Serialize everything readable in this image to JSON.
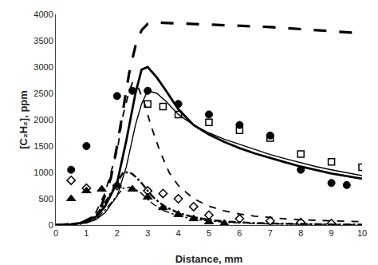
{
  "chart_data": {
    "type": "line",
    "xlabel": "Distance, mm",
    "ylabel": "[C₂H₂], ppm",
    "xlim": [
      0,
      10
    ],
    "ylim": [
      0,
      4000
    ],
    "xticks": [
      0,
      1,
      2,
      3,
      4,
      5,
      6,
      7,
      8,
      9,
      10
    ],
    "yticks": [
      0,
      500,
      1000,
      1500,
      2000,
      2500,
      3000,
      3500,
      4000
    ],
    "grid": false,
    "series": [
      {
        "type": "line",
        "color": "#000000",
        "line_style": "dashed",
        "x": [
          0,
          0.3,
          0.6,
          0.9,
          1.2,
          1.5,
          1.8,
          2.0,
          2.2,
          2.4,
          2.6,
          2.8,
          3.0,
          3.2,
          3.5,
          4.0,
          4.5,
          5.0,
          5.5,
          6.0,
          6.5,
          7.0,
          7.5,
          8.0,
          8.5,
          9.0,
          9.5,
          10.0
        ],
        "values": [
          0,
          5,
          20,
          60,
          150,
          380,
          900,
          1500,
          2200,
          2900,
          3400,
          3700,
          3820,
          3850,
          3840,
          3830,
          3820,
          3810,
          3800,
          3790,
          3780,
          3760,
          3740,
          3720,
          3700,
          3680,
          3660,
          3640
        ]
      },
      {
        "type": "line",
        "color": "#000000",
        "line_style": "solid",
        "x": [
          0,
          0.2,
          0.5,
          0.8,
          1.0,
          1.3,
          1.6,
          2.0,
          2.3,
          2.6,
          2.8,
          3.0,
          3.3,
          3.6,
          4.0,
          4.5,
          5.0,
          5.5,
          6.0,
          6.5,
          7.0,
          7.5,
          8.0,
          8.5,
          9.0,
          9.5,
          10.0
        ],
        "values": [
          0,
          5,
          15,
          40,
          70,
          150,
          350,
          800,
          1600,
          2500,
          2950,
          3000,
          2800,
          2550,
          2200,
          1900,
          1720,
          1580,
          1460,
          1360,
          1270,
          1190,
          1110,
          1040,
          980,
          930,
          880
        ]
      },
      {
        "type": "line",
        "color": "#000000",
        "line_style": "solid",
        "x": [
          0,
          0.2,
          0.5,
          0.8,
          1.0,
          1.3,
          1.6,
          2.0,
          2.3,
          2.6,
          2.8,
          3.0,
          3.3,
          3.6,
          4.0,
          4.5,
          5.0,
          5.5,
          6.0,
          6.5,
          7.0,
          7.5,
          8.0,
          8.5,
          9.0,
          9.5,
          10.0
        ],
        "values": [
          0,
          3,
          10,
          25,
          45,
          100,
          230,
          550,
          1100,
          1900,
          2300,
          2550,
          2500,
          2350,
          2100,
          1900,
          1750,
          1630,
          1530,
          1430,
          1340,
          1260,
          1180,
          1110,
          1050,
          990,
          940
        ]
      },
      {
        "type": "line",
        "color": "#000000",
        "line_style": "dashed",
        "x": [
          0,
          0.2,
          0.5,
          0.8,
          1.0,
          1.3,
          1.6,
          2.0,
          2.2,
          2.4,
          2.5,
          2.7,
          2.9,
          3.1,
          3.4,
          3.7,
          4.0,
          4.5,
          5.0,
          5.5,
          6.0,
          6.5,
          7.0,
          7.5,
          8.0,
          9.0,
          10.0
        ],
        "values": [
          0,
          3,
          10,
          35,
          80,
          230,
          600,
          1400,
          2100,
          2550,
          2700,
          2600,
          2300,
          1900,
          1400,
          1000,
          750,
          500,
          360,
          270,
          210,
          170,
          140,
          118,
          100,
          78,
          63
        ]
      },
      {
        "type": "line",
        "color": "#000000",
        "line_style": "dashdot",
        "x": [
          0,
          0.2,
          0.5,
          0.8,
          1.0,
          1.3,
          1.6,
          2.0,
          2.2,
          2.4,
          2.5,
          2.6,
          2.8,
          3.0,
          3.2,
          3.5,
          4.0,
          4.5,
          5.0,
          5.5,
          6.0,
          6.5,
          7.0,
          7.5,
          8.0,
          8.5,
          9.0,
          10.0
        ],
        "values": [
          0,
          3,
          10,
          30,
          60,
          170,
          420,
          800,
          1000,
          1000,
          970,
          920,
          800,
          650,
          520,
          370,
          230,
          150,
          100,
          70,
          50,
          38,
          30,
          24,
          20,
          17,
          14,
          10
        ]
      },
      {
        "type": "line",
        "color": "#000000",
        "line_style": "dashdot",
        "x": [
          0,
          0.2,
          0.5,
          0.8,
          1.0,
          1.3,
          1.6,
          2.0,
          2.2,
          2.4,
          2.5,
          2.6,
          2.8,
          3.0,
          3.2,
          3.5,
          4.0,
          4.5,
          5.0,
          5.5,
          6.0,
          6.5,
          7.0,
          7.5,
          8.0,
          8.5,
          9.0,
          10.0
        ],
        "values": [
          0,
          2,
          7,
          20,
          40,
          110,
          280,
          560,
          700,
          720,
          710,
          680,
          600,
          490,
          390,
          280,
          175,
          115,
          77,
          54,
          39,
          30,
          23,
          19,
          16,
          13,
          11,
          8
        ]
      },
      {
        "type": "scatter",
        "color": "#000000",
        "marker": "circle",
        "x": [
          0.5,
          1.0,
          2.0,
          2.5,
          3.0,
          4.0,
          5.0,
          6.0,
          7.0,
          8.0,
          9.0,
          9.5
        ],
        "values": [
          1050,
          1500,
          2450,
          2550,
          2550,
          2300,
          2100,
          1900,
          1700,
          1050,
          800,
          760
        ]
      },
      {
        "type": "scatter",
        "color": "#000000",
        "marker": "square-open",
        "x": [
          3.0,
          3.5,
          4.0,
          5.0,
          6.0,
          7.0,
          8.0,
          9.0,
          10.0
        ],
        "values": [
          2300,
          2250,
          2100,
          1950,
          1800,
          1650,
          1350,
          1200,
          1100
        ]
      },
      {
        "type": "scatter",
        "color": "#000000",
        "marker": "diamond-open",
        "x": [
          0.5,
          1.0,
          2.0,
          3.0,
          3.5,
          4.0,
          4.5,
          5.0,
          6.0,
          7.0,
          8.0,
          9.0
        ],
        "values": [
          850,
          700,
          750,
          650,
          600,
          500,
          350,
          190,
          120,
          80,
          50,
          30
        ]
      },
      {
        "type": "scatter",
        "color": "#000000",
        "marker": "triangle-up",
        "x": [
          0.5,
          1.0,
          1.5,
          2.0,
          2.5,
          3.0,
          3.5,
          4.0,
          4.5,
          5.0,
          5.5
        ],
        "values": [
          500,
          650,
          680,
          750,
          680,
          530,
          330,
          200,
          120,
          60,
          30
        ]
      }
    ]
  }
}
